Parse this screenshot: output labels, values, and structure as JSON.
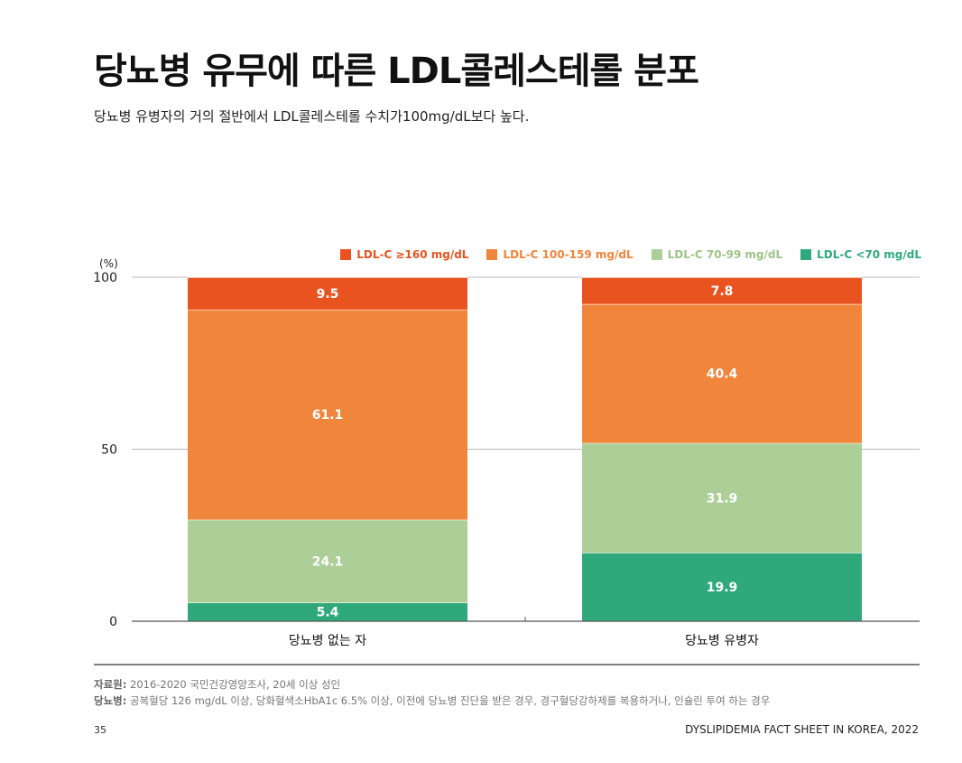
{
  "header": {
    "title": "당뇨병 유무에 따른 LDL콜레스테롤 분포",
    "subtitle": "당뇨병 유병자의 거의 절반에서 LDL콜레스테롤 수치가100mg/dL보다 높다."
  },
  "chart_data": {
    "type": "bar",
    "stacked": true,
    "unit_label": "(%)",
    "categories": [
      "당뇨병 없는 자",
      "당뇨병 유병자"
    ],
    "ylim": [
      0,
      100
    ],
    "yticks": [
      "0",
      "50",
      "100"
    ],
    "grid": true,
    "legend_position": "top-right",
    "series": [
      {
        "name": "LDL-C <70 mg/dL",
        "color": "#2fa97c",
        "values": [
          5.4,
          19.9
        ]
      },
      {
        "name": "LDL-C 70-99 mg/dL",
        "color": "#accf98",
        "values": [
          24.1,
          31.9
        ]
      },
      {
        "name": "LDL-C 100-159 mg/dL",
        "color": "#f0853c",
        "values": [
          61.1,
          40.4
        ]
      },
      {
        "name": "LDL-C ≥160 mg/dL",
        "color": "#e8531f",
        "values": [
          9.5,
          7.8
        ]
      }
    ]
  },
  "legend_order": [
    {
      "name": "LDL-C ≥160 mg/dL",
      "color": "#e8531f"
    },
    {
      "name": "LDL-C 100-159 mg/dL",
      "color": "#f0853c"
    },
    {
      "name": "LDL-C 70-99 mg/dL",
      "color": "#accf98"
    },
    {
      "name": "LDL-C <70 mg/dL",
      "color": "#2fa97c"
    }
  ],
  "source": {
    "label1": "자료원:",
    "text1": " 2016-2020  국민건강영양조사, 20세 이상 성인",
    "label2": "당뇨병:",
    "text2": " 공복혈당 126 mg/dL 이상, 당화혈색소HbA1c 6.5% 이상, 이전에 당뇨병 진단을 받은 경우, 경구혈당강하제를 복용하거나, 인슐린 투여 하는 경우"
  },
  "footer": {
    "page": "35",
    "doc_title": "DYSLIPIDEMIA FACT SHEET IN KOREA, 2022"
  }
}
